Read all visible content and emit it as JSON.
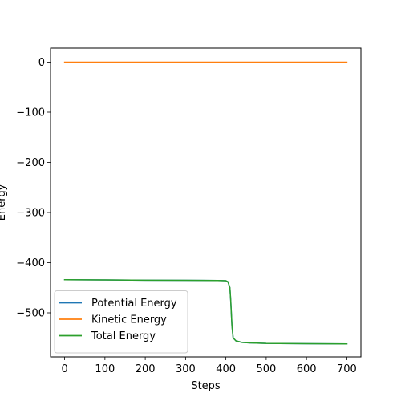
{
  "chart_data": {
    "type": "line",
    "title": "",
    "xlabel": "Steps",
    "ylabel": "Energy",
    "xlim": [
      -35,
      735
    ],
    "ylim": [
      -588,
      28
    ],
    "xticks": [
      0,
      100,
      200,
      300,
      400,
      500,
      600,
      700
    ],
    "yticks": [
      0,
      -100,
      -200,
      -300,
      -400,
      -500
    ],
    "xtick_labels": [
      "0",
      "100",
      "200",
      "300",
      "400",
      "500",
      "600",
      "700"
    ],
    "ytick_labels": [
      "0",
      "−100",
      "−200",
      "−300",
      "−400",
      "−500"
    ],
    "grid": false,
    "legend_position": "lower-left",
    "series": [
      {
        "name": "Potential Energy",
        "color": "#1f77b4",
        "x": [
          0,
          100,
          200,
          300,
          380,
          400,
          405,
          410,
          412,
          415,
          418,
          425,
          440,
          460,
          500,
          600,
          700
        ],
        "y": [
          -434,
          -434.5,
          -435,
          -435.3,
          -435.5,
          -436,
          -438,
          -450,
          -475,
          -525,
          -550,
          -556,
          -559,
          -560,
          -561,
          -561.5,
          -562
        ]
      },
      {
        "name": "Kinetic Energy",
        "color": "#ff7f0e",
        "x": [
          0,
          100,
          200,
          300,
          400,
          500,
          600,
          700
        ],
        "y": [
          0,
          0,
          0,
          0,
          0,
          0,
          0,
          0
        ]
      },
      {
        "name": "Total Energy",
        "color": "#2ca02c",
        "x": [
          0,
          100,
          200,
          300,
          380,
          400,
          405,
          410,
          412,
          415,
          418,
          425,
          440,
          460,
          500,
          600,
          700
        ],
        "y": [
          -434,
          -434.5,
          -435,
          -435.3,
          -435.5,
          -436,
          -438,
          -450,
          -475,
          -525,
          -550,
          -556,
          -559,
          -560,
          -561,
          -561.5,
          -562
        ]
      }
    ]
  }
}
